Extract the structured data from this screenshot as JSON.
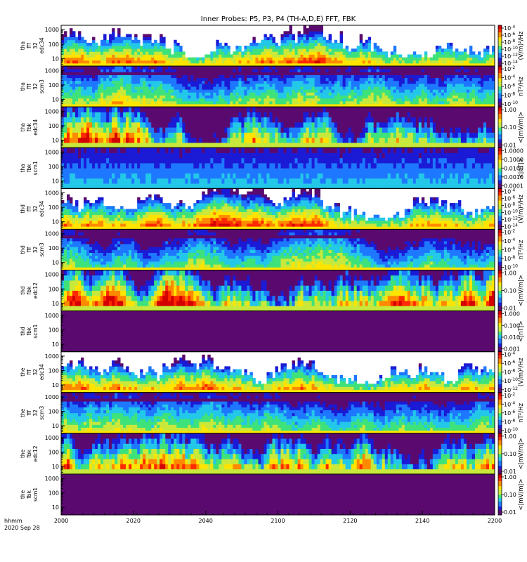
{
  "chart_data": {
    "type": "heatmap",
    "title": "Inner Probes: P5, P3, P4 (TH-A,D,E) FFT, FBK",
    "xlabel": [
      "hhmm",
      "2020 Sep 28"
    ],
    "x_ticks": [
      "2000",
      "2020",
      "2040",
      "2100",
      "2120",
      "2140",
      "2200"
    ],
    "x_range": [
      "2000",
      "2200"
    ],
    "panels": [
      {
        "ylabel": [
          "tha",
          "fff",
          "32",
          "edc34"
        ],
        "yticks": [
          "1000",
          "100",
          "10"
        ],
        "ylim": [
          3,
          2000
        ],
        "log_y": true,
        "cbar_ticks": [
          "10^-4",
          "10^-6",
          "10^-8",
          "10^-10",
          "10^-12",
          "10^-14"
        ],
        "cbar_unit": "(V/m)²/Hz"
      },
      {
        "ylabel": [
          "tha",
          "fff",
          "32",
          "scm3"
        ],
        "yticks": [
          "1000",
          "100",
          "10"
        ],
        "ylim": [
          3,
          2000
        ],
        "log_y": true,
        "cbar_ticks": [
          "10^-2",
          "10^-4",
          "10^-6",
          "10^-8",
          "10^-10"
        ],
        "cbar_unit": "nT²/Hz"
      },
      {
        "ylabel": [
          "tha",
          "fbk",
          "edc34"
        ],
        "yticks": [
          "1000",
          "100",
          "10"
        ],
        "ylim": [
          3,
          2000
        ],
        "log_y": true,
        "cbar_ticks": [
          "1.00",
          "0.10",
          "0.01"
        ],
        "cbar_unit": "<|mV/m|>"
      },
      {
        "ylabel": [
          "tha",
          "fbk",
          "scm1"
        ],
        "yticks": [
          "1000",
          "100",
          "10"
        ],
        "ylim": [
          3,
          2000
        ],
        "log_y": true,
        "cbar_ticks": [
          "1.0000",
          "0.1000",
          "0.0100",
          "0.0010",
          "0.0001"
        ],
        "cbar_unit": "<|nT|>"
      },
      {
        "ylabel": [
          "thd",
          "fff",
          "32",
          "edc34"
        ],
        "yticks": [
          "1000",
          "100",
          "10"
        ],
        "ylim": [
          3,
          2000
        ],
        "log_y": true,
        "cbar_ticks": [
          "10^-4",
          "10^-6",
          "10^-8",
          "10^-10",
          "10^-12",
          "10^-14"
        ],
        "cbar_unit": "(V/m)²/Hz"
      },
      {
        "ylabel": [
          "thd",
          "fff",
          "32",
          "scm3"
        ],
        "yticks": [
          "1000",
          "100",
          "10"
        ],
        "ylim": [
          3,
          2000
        ],
        "log_y": true,
        "cbar_ticks": [
          "10^-2",
          "10^-4",
          "10^-6",
          "10^-8",
          "10^-10"
        ],
        "cbar_unit": "nT²/Hz"
      },
      {
        "ylabel": [
          "thd",
          "fbk",
          "edc12"
        ],
        "yticks": [
          "1000",
          "100",
          "10"
        ],
        "ylim": [
          3,
          2000
        ],
        "log_y": true,
        "cbar_ticks": [
          "1.00",
          "0.10",
          "0.01"
        ],
        "cbar_unit": "<|mV/m|>"
      },
      {
        "ylabel": [
          "thd",
          "fbk",
          "scm1"
        ],
        "yticks": [
          "1000",
          "100",
          "10"
        ],
        "ylim": [
          3,
          2000
        ],
        "log_y": true,
        "cbar_ticks": [
          "1.000",
          "0.100",
          "0.010",
          "0.001"
        ],
        "cbar_unit": "<|nT|>"
      },
      {
        "ylabel": [
          "the",
          "fff",
          "32",
          "edc34"
        ],
        "yticks": [
          "1000",
          "100",
          "10"
        ],
        "ylim": [
          3,
          2000
        ],
        "log_y": true,
        "cbar_ticks": [
          "10^-4",
          "10^-6",
          "10^-8",
          "10^-10",
          "10^-12"
        ],
        "cbar_unit": "(V/m)²/Hz"
      },
      {
        "ylabel": [
          "the",
          "fff",
          "32",
          "scm3"
        ],
        "yticks": [
          "1000",
          "100",
          "10"
        ],
        "ylim": [
          3,
          2000
        ],
        "log_y": true,
        "cbar_ticks": [
          "10^-2",
          "10^-4",
          "10^-6",
          "10^-8",
          "10^-10"
        ],
        "cbar_unit": "nT²/Hz"
      },
      {
        "ylabel": [
          "the",
          "fbk",
          "edc12"
        ],
        "yticks": [
          "1000",
          "100",
          "10"
        ],
        "ylim": [
          3,
          2000
        ],
        "log_y": true,
        "cbar_ticks": [
          "1.00",
          "0.10",
          "0.01"
        ],
        "cbar_unit": "<|mV/m|>"
      },
      {
        "ylabel": [
          "the",
          "fbk",
          "scm1"
        ],
        "yticks": [
          "1000",
          "100",
          "10"
        ],
        "ylim": [
          3,
          2000
        ],
        "log_y": true,
        "cbar_ticks": [
          "1.00",
          "0.10",
          "0.01"
        ],
        "cbar_unit": "<|mV/m|>"
      }
    ],
    "colormap": [
      "#5a0a6e",
      "#1b1bd6",
      "#1e78ff",
      "#23c8e8",
      "#3ee27a",
      "#c8e83c",
      "#ffe400",
      "#ff8a00",
      "#ff2a00",
      "#d40000"
    ],
    "grid": false,
    "legend": "colorbars-right"
  }
}
